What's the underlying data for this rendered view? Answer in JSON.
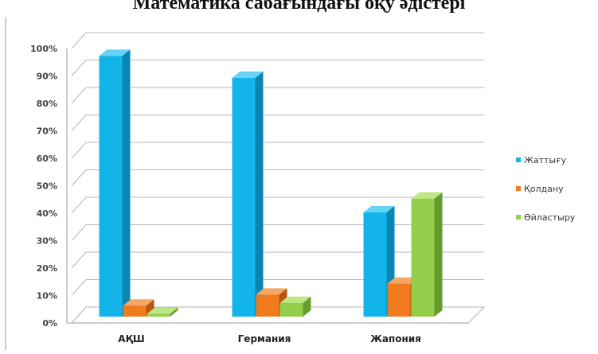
{
  "chart_data": {
    "type": "bar",
    "title": "Математика сабағындағы оқу әдістері",
    "categories": [
      "АҚШ",
      "Германия",
      "Жапония"
    ],
    "series": [
      {
        "name": "Жаттығу",
        "values": [
          95,
          87,
          38
        ]
      },
      {
        "name": "Қолдану",
        "values": [
          4,
          8,
          12
        ]
      },
      {
        "name": "Өйластыру",
        "values": [
          1,
          5,
          43
        ]
      }
    ],
    "ylim": [
      0,
      100
    ],
    "yticks": [
      "0%",
      "10%",
      "20%",
      "30%",
      "40%",
      "50%",
      "60%",
      "70%",
      "80%",
      "90%",
      "100%"
    ],
    "grid": true,
    "legend_position": "right",
    "style": "3d-column",
    "colors": [
      "#12b4ea",
      "#f07a1e",
      "#93cf4b"
    ],
    "side_colors": [
      "#0b86b3",
      "#b8540f",
      "#679c2c"
    ],
    "top_colors": [
      "#65d4f7",
      "#f5a865",
      "#bde785"
    ]
  }
}
